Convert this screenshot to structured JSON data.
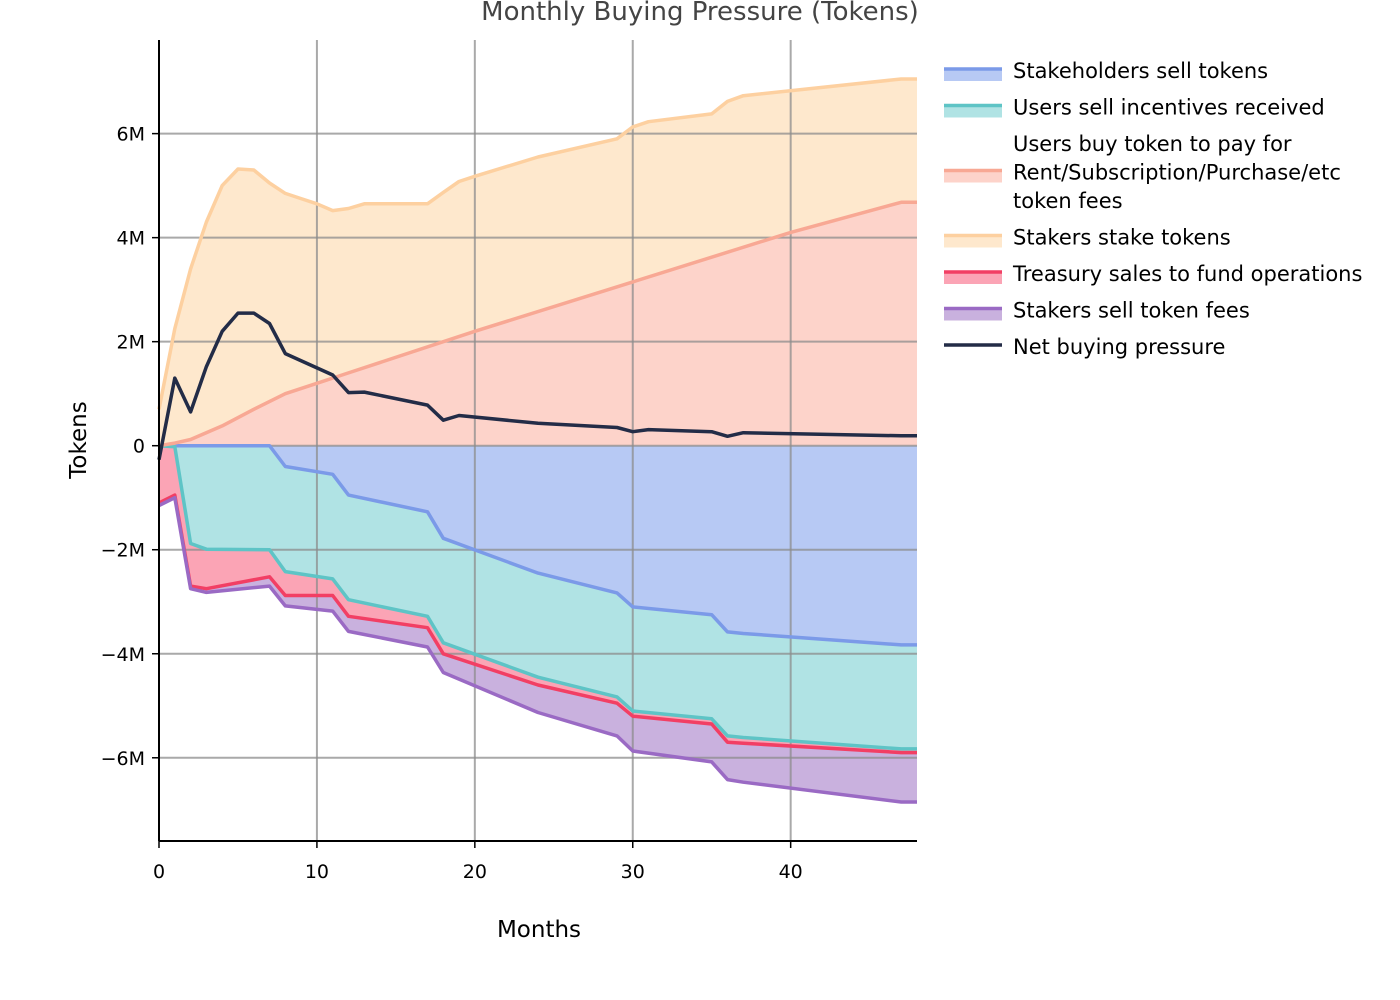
{
  "chart_data": {
    "type": "area",
    "title": "Monthly Buying Pressure (Tokens)",
    "xlabel": "Months",
    "ylabel": "Tokens",
    "xlim": [
      0,
      48
    ],
    "ylim": [
      -7600000,
      7800000
    ],
    "xticks": [
      0,
      10,
      20,
      30,
      40
    ],
    "xtick_labels": [
      "0",
      "10",
      "20",
      "30",
      "40"
    ],
    "yticks": [
      -6000000,
      -4000000,
      -2000000,
      0,
      2000000,
      4000000,
      6000000
    ],
    "ytick_labels": [
      "−6M",
      "−4M",
      "−2M",
      "0",
      "2M",
      "4M",
      "6M"
    ],
    "grid": true,
    "legend_position": "right-outside",
    "negative_stack": [
      {
        "name": "Stakeholders sell tokens",
        "color": "#7b9ae8",
        "fill": "#b7c9f4",
        "points": [
          [
            0,
            0
          ],
          [
            1,
            0
          ],
          [
            2,
            0
          ],
          [
            3,
            0
          ],
          [
            7,
            0
          ],
          [
            8,
            -400000
          ],
          [
            11,
            -550000
          ],
          [
            12,
            -950000
          ],
          [
            17,
            -1270000
          ],
          [
            18,
            -1780000
          ],
          [
            24,
            -2450000
          ],
          [
            29,
            -2830000
          ],
          [
            30,
            -3100000
          ],
          [
            35,
            -3250000
          ],
          [
            36,
            -3580000
          ],
          [
            37,
            -3610000
          ],
          [
            47,
            -3830000
          ],
          [
            48,
            -3830000
          ]
        ]
      },
      {
        "name": "Users sell incentives received",
        "color": "#5ec4c6",
        "fill": "#b0e3e4",
        "points": [
          [
            0,
            0
          ],
          [
            1,
            -20000
          ],
          [
            2,
            -1880000
          ],
          [
            3,
            -1990000
          ],
          [
            7,
            -2000000
          ],
          [
            8,
            -2420000
          ],
          [
            11,
            -2560000
          ],
          [
            12,
            -2960000
          ],
          [
            17,
            -3280000
          ],
          [
            18,
            -3790000
          ],
          [
            24,
            -4450000
          ],
          [
            29,
            -4830000
          ],
          [
            30,
            -5100000
          ],
          [
            35,
            -5250000
          ],
          [
            36,
            -5580000
          ],
          [
            37,
            -5610000
          ],
          [
            47,
            -5830000
          ],
          [
            48,
            -5830000
          ]
        ]
      },
      {
        "name": "Treasury sales to fund operations",
        "color": "#f23f64",
        "fill": "#fba4b5",
        "points": [
          [
            0,
            -1100000
          ],
          [
            1,
            -950000
          ],
          [
            2,
            -2700000
          ],
          [
            3,
            -2750000
          ],
          [
            7,
            -2520000
          ],
          [
            8,
            -2880000
          ],
          [
            11,
            -2880000
          ],
          [
            12,
            -3280000
          ],
          [
            17,
            -3500000
          ],
          [
            18,
            -4000000
          ],
          [
            24,
            -4600000
          ],
          [
            29,
            -4950000
          ],
          [
            30,
            -5200000
          ],
          [
            35,
            -5350000
          ],
          [
            36,
            -5700000
          ],
          [
            37,
            -5720000
          ],
          [
            47,
            -5900000
          ],
          [
            48,
            -5900000
          ]
        ]
      },
      {
        "name": "Stakers sell token fees",
        "color": "#9a6ac4",
        "fill": "#c9b1de",
        "points": [
          [
            0,
            -1150000
          ],
          [
            1,
            -1000000
          ],
          [
            2,
            -2750000
          ],
          [
            3,
            -2820000
          ],
          [
            7,
            -2700000
          ],
          [
            8,
            -3080000
          ],
          [
            11,
            -3180000
          ],
          [
            12,
            -3570000
          ],
          [
            17,
            -3870000
          ],
          [
            18,
            -4360000
          ],
          [
            24,
            -5130000
          ],
          [
            29,
            -5580000
          ],
          [
            30,
            -5870000
          ],
          [
            35,
            -6080000
          ],
          [
            36,
            -6420000
          ],
          [
            37,
            -6470000
          ],
          [
            47,
            -6850000
          ],
          [
            48,
            -6850000
          ]
        ]
      }
    ],
    "positive_stack": [
      {
        "name": "Users buy token to pay for Rent/Subscription/Purchase/etc token fees",
        "color": "#f8a894",
        "fill": "#fdd3ca",
        "points": [
          [
            0,
            0
          ],
          [
            1,
            50000
          ],
          [
            2,
            120000
          ],
          [
            4,
            380000
          ],
          [
            6,
            700000
          ],
          [
            8,
            1000000
          ],
          [
            10,
            1200000
          ],
          [
            12,
            1400000
          ],
          [
            20,
            2200000
          ],
          [
            30,
            3150000
          ],
          [
            40,
            4100000
          ],
          [
            47,
            4680000
          ],
          [
            48,
            4680000
          ]
        ]
      },
      {
        "name": "Stakers stake tokens",
        "color": "#fdd0a0",
        "fill": "#fee8cd",
        "points": [
          [
            0,
            700000
          ],
          [
            1,
            2250000
          ],
          [
            2,
            3400000
          ],
          [
            3,
            4300000
          ],
          [
            4,
            5000000
          ],
          [
            5,
            5320000
          ],
          [
            6,
            5300000
          ],
          [
            7,
            5050000
          ],
          [
            8,
            4850000
          ],
          [
            9,
            4750000
          ],
          [
            10,
            4650000
          ],
          [
            11,
            4520000
          ],
          [
            12,
            4560000
          ],
          [
            13,
            4650000
          ],
          [
            17,
            4650000
          ],
          [
            18,
            4870000
          ],
          [
            19,
            5080000
          ],
          [
            20,
            5180000
          ],
          [
            24,
            5550000
          ],
          [
            29,
            5900000
          ],
          [
            30,
            6130000
          ],
          [
            31,
            6230000
          ],
          [
            35,
            6380000
          ],
          [
            36,
            6620000
          ],
          [
            37,
            6730000
          ],
          [
            47,
            7050000
          ],
          [
            48,
            7050000
          ]
        ]
      }
    ],
    "net_line": {
      "name": "Net buying pressure",
      "color": "#232c47",
      "points": [
        [
          0,
          -270000
        ],
        [
          1,
          1300000
        ],
        [
          2,
          650000
        ],
        [
          3,
          1520000
        ],
        [
          4,
          2200000
        ],
        [
          5,
          2550000
        ],
        [
          6,
          2550000
        ],
        [
          7,
          2350000
        ],
        [
          8,
          1770000
        ],
        [
          11,
          1360000
        ],
        [
          12,
          1020000
        ],
        [
          13,
          1030000
        ],
        [
          17,
          780000
        ],
        [
          18,
          490000
        ],
        [
          19,
          580000
        ],
        [
          24,
          430000
        ],
        [
          29,
          350000
        ],
        [
          30,
          270000
        ],
        [
          31,
          310000
        ],
        [
          35,
          270000
        ],
        [
          36,
          180000
        ],
        [
          37,
          250000
        ],
        [
          47,
          190000
        ],
        [
          48,
          190000
        ]
      ]
    },
    "legend": [
      {
        "label": "Stakeholders sell tokens",
        "color": "#7b9ae8",
        "fill": "#b7c9f4"
      },
      {
        "label": "Users sell incentives received",
        "color": "#5ec4c6",
        "fill": "#b0e3e4"
      },
      {
        "label": "Users buy token to pay for Rent/Subscription/Purchase/etc token fees",
        "color": "#f8a894",
        "fill": "#fdd3ca"
      },
      {
        "label": "Stakers stake tokens",
        "color": "#fdd0a0",
        "fill": "#fee8cd"
      },
      {
        "label": "Treasury sales to fund operations",
        "color": "#f23f64",
        "fill": "#fba4b5"
      },
      {
        "label": "Stakers sell token fees",
        "color": "#9a6ac4",
        "fill": "#c9b1de"
      },
      {
        "label": "Net buying pressure",
        "color": "#232c47",
        "fill": ""
      }
    ]
  }
}
